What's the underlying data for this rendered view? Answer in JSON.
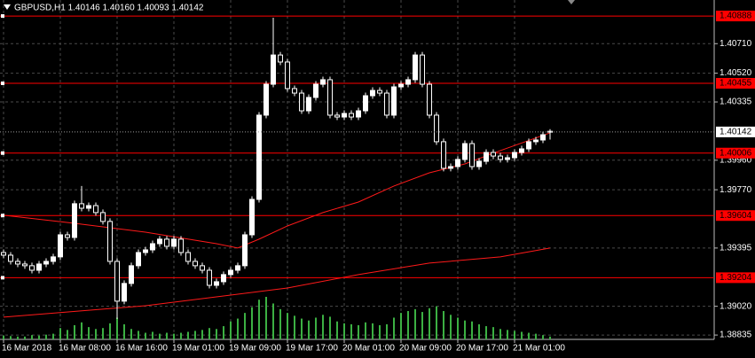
{
  "chart_data": {
    "type": "candlestick",
    "title": "GBPUSD,H1 1.40146 1.40160 1.40093 1.40142",
    "categories": [
      "16 Mar 2018",
      null,
      null,
      null,
      null,
      null,
      null,
      null,
      "16 Mar 08:00",
      null,
      null,
      null,
      null,
      null,
      null,
      null,
      "16 Mar 16:00",
      null,
      null,
      null,
      null,
      null,
      null,
      null,
      "19 Mar 01:00",
      null,
      null,
      null,
      null,
      null,
      null,
      null,
      "19 Mar 09:00",
      null,
      null,
      null,
      null,
      null,
      null,
      null,
      "19 Mar 17:00",
      null,
      null,
      null,
      null,
      null,
      null,
      null,
      "20 Mar 01:00",
      null,
      null,
      null,
      null,
      null,
      null,
      null,
      "20 Mar 09:00",
      null,
      null,
      null,
      null,
      null,
      null,
      null,
      "20 Mar 17:00",
      null,
      null,
      null,
      null,
      null,
      null,
      null,
      "21 Mar 01:00",
      null,
      null,
      null,
      null,
      null
    ],
    "open": [
      1.39366,
      1.39349,
      1.39309,
      1.39292,
      1.39281,
      1.39252,
      1.39292,
      1.39309,
      1.39338,
      1.3948,
      1.39463,
      1.3968,
      1.39651,
      1.39668,
      1.39623,
      1.39566,
      1.39309,
      1.39053,
      1.39167,
      1.39281,
      1.39366,
      1.39383,
      1.39423,
      1.39452,
      1.39406,
      1.39452,
      1.39366,
      1.39309,
      1.39281,
      1.39252,
      1.39155,
      1.39178,
      1.39224,
      1.39252,
      1.39281,
      1.3948,
      1.39708,
      1.4025,
      1.40449,
      1.40637,
      1.40592,
      1.40421,
      1.40392,
      1.40278,
      1.40364,
      1.40449,
      1.40478,
      1.4025,
      1.40238,
      1.40261,
      1.40238,
      1.40278,
      1.40375,
      1.40409,
      1.40392,
      1.4025,
      1.40432,
      1.40449,
      1.40478,
      1.40637,
      1.40449,
      1.4025,
      1.40079,
      1.39908,
      1.39919,
      1.39965,
      1.40067,
      1.39919,
      1.39953,
      1.4001,
      1.39987,
      1.39965,
      1.39976,
      1.4001,
      1.40033,
      1.40079,
      1.4009,
      1.40146
    ],
    "high": [
      1.39386,
      1.39369,
      1.39329,
      1.39312,
      1.39301,
      1.39312,
      1.39329,
      1.39358,
      1.395,
      1.395,
      1.397,
      1.39794,
      1.39688,
      1.39688,
      1.39643,
      1.39586,
      1.39329,
      1.39187,
      1.39301,
      1.39386,
      1.39403,
      1.39443,
      1.39472,
      1.39472,
      1.39472,
      1.39472,
      1.39386,
      1.39329,
      1.39301,
      1.39272,
      1.39198,
      1.39244,
      1.39272,
      1.39301,
      1.395,
      1.39728,
      1.4027,
      1.40469,
      1.40877,
      1.40657,
      1.40612,
      1.40441,
      1.40412,
      1.40384,
      1.40469,
      1.40498,
      1.40498,
      1.4027,
      1.40281,
      1.40281,
      1.40298,
      1.40395,
      1.40429,
      1.40429,
      1.40412,
      1.40452,
      1.40469,
      1.40498,
      1.40657,
      1.40657,
      1.40469,
      1.4027,
      1.40099,
      1.39939,
      1.39985,
      1.40087,
      1.40087,
      1.39973,
      1.4003,
      1.4003,
      1.40007,
      1.39996,
      1.4003,
      1.40053,
      1.40099,
      1.4011,
      1.40144,
      1.4016
    ],
    "low": [
      1.39329,
      1.39289,
      1.39272,
      1.39261,
      1.39232,
      1.39232,
      1.39272,
      1.39289,
      1.39318,
      1.39443,
      1.39443,
      1.39631,
      1.39631,
      1.39603,
      1.39546,
      1.39289,
      1.38939,
      1.39033,
      1.39147,
      1.39261,
      1.39346,
      1.39363,
      1.39403,
      1.39386,
      1.39386,
      1.39346,
      1.39289,
      1.39261,
      1.39232,
      1.39135,
      1.39135,
      1.39158,
      1.39204,
      1.39232,
      1.39261,
      1.3946,
      1.39688,
      1.4023,
      1.40429,
      1.40572,
      1.40401,
      1.40372,
      1.40258,
      1.40258,
      1.40344,
      1.40429,
      1.4023,
      1.40218,
      1.40218,
      1.40218,
      1.40218,
      1.40258,
      1.40355,
      1.40372,
      1.4023,
      1.4023,
      1.40412,
      1.40429,
      1.40458,
      1.40429,
      1.4023,
      1.40059,
      1.39888,
      1.39888,
      1.39899,
      1.39945,
      1.39899,
      1.39899,
      1.39933,
      1.39967,
      1.39945,
      1.39945,
      1.39956,
      1.3999,
      1.40013,
      1.40059,
      1.4007,
      1.40093
    ],
    "close": [
      1.39349,
      1.39309,
      1.39292,
      1.39281,
      1.39252,
      1.39292,
      1.39309,
      1.39338,
      1.3948,
      1.39463,
      1.3968,
      1.39651,
      1.39668,
      1.39623,
      1.39566,
      1.39309,
      1.39053,
      1.39167,
      1.39281,
      1.39366,
      1.39383,
      1.39423,
      1.39452,
      1.39406,
      1.39452,
      1.39366,
      1.39309,
      1.39281,
      1.39252,
      1.39155,
      1.39178,
      1.39224,
      1.39252,
      1.39281,
      1.3948,
      1.39708,
      1.4025,
      1.40449,
      1.40637,
      1.40592,
      1.40421,
      1.40392,
      1.40278,
      1.40364,
      1.40449,
      1.40478,
      1.4025,
      1.40238,
      1.40261,
      1.40238,
      1.40278,
      1.40375,
      1.40409,
      1.40392,
      1.4025,
      1.40432,
      1.40449,
      1.40478,
      1.40637,
      1.40449,
      1.4025,
      1.40079,
      1.39908,
      1.39919,
      1.39965,
      1.40067,
      1.39919,
      1.39953,
      1.4001,
      1.39987,
      1.39965,
      1.39976,
      1.4001,
      1.40033,
      1.40079,
      1.4009,
      1.40124,
      1.40142
    ],
    "volumes": [
      400,
      350,
      300,
      300,
      450,
      400,
      500,
      600,
      1200,
      1000,
      1500,
      1800,
      1300,
      1100,
      1200,
      1700,
      2300,
      1600,
      1100,
      900,
      700,
      800,
      600,
      700,
      600,
      700,
      800,
      900,
      1000,
      1200,
      1100,
      1400,
      1900,
      2200,
      2800,
      3400,
      4200,
      4500,
      3800,
      3200,
      2800,
      2500,
      2200,
      2000,
      2300,
      2600,
      2400,
      1900,
      1700,
      1600,
      1500,
      1800,
      1700,
      1500,
      1600,
      2300,
      2800,
      3000,
      3200,
      2900,
      3300,
      3500,
      3000,
      2600,
      2300,
      2000,
      1900,
      1600,
      1400,
      1300,
      1100,
      1000,
      900,
      800,
      700,
      600,
      450,
      300
    ],
    "volume_color": "#3cb043",
    "moving_averages": [
      {
        "color": "#ff1a1a",
        "x": [
          0,
          10,
          20,
          30,
          33,
          36,
          40,
          45,
          50,
          55,
          60,
          65,
          70,
          77
        ],
        "values": [
          1.39606,
          1.39554,
          1.39497,
          1.39423,
          1.39395,
          1.39452,
          1.39537,
          1.39623,
          1.39691,
          1.39794,
          1.39879,
          1.39936,
          1.40022,
          1.40136
        ]
      },
      {
        "color": "#ff1a1a",
        "x": [
          0,
          20,
          30,
          40,
          50,
          60,
          70,
          77
        ],
        "values": [
          1.3895,
          1.39024,
          1.39081,
          1.39138,
          1.39224,
          1.39298,
          1.39338,
          1.39395
        ]
      }
    ],
    "levels": [
      1.40888,
      1.40455,
      1.40006,
      1.39604,
      1.39204
    ],
    "level_color": "#ff0000",
    "up_color": "#ffffff",
    "down_color": "#000000",
    "wick_color": "#ffffff",
    "ylim": [
      1.38807,
      1.40991
    ],
    "yticks": [
      {
        "value": 1.4071,
        "label": "1.40710"
      },
      {
        "value": 1.4052,
        "label": "1.40520"
      },
      1.40335,
      {
        "value": 1.3996,
        "label": "1.39960"
      },
      {
        "value": 1.3977,
        "label": "1.39770"
      },
      1.39395,
      {
        "value": 1.3902,
        "label": "1.39020"
      },
      1.38835
    ],
    "grid": true
  }
}
